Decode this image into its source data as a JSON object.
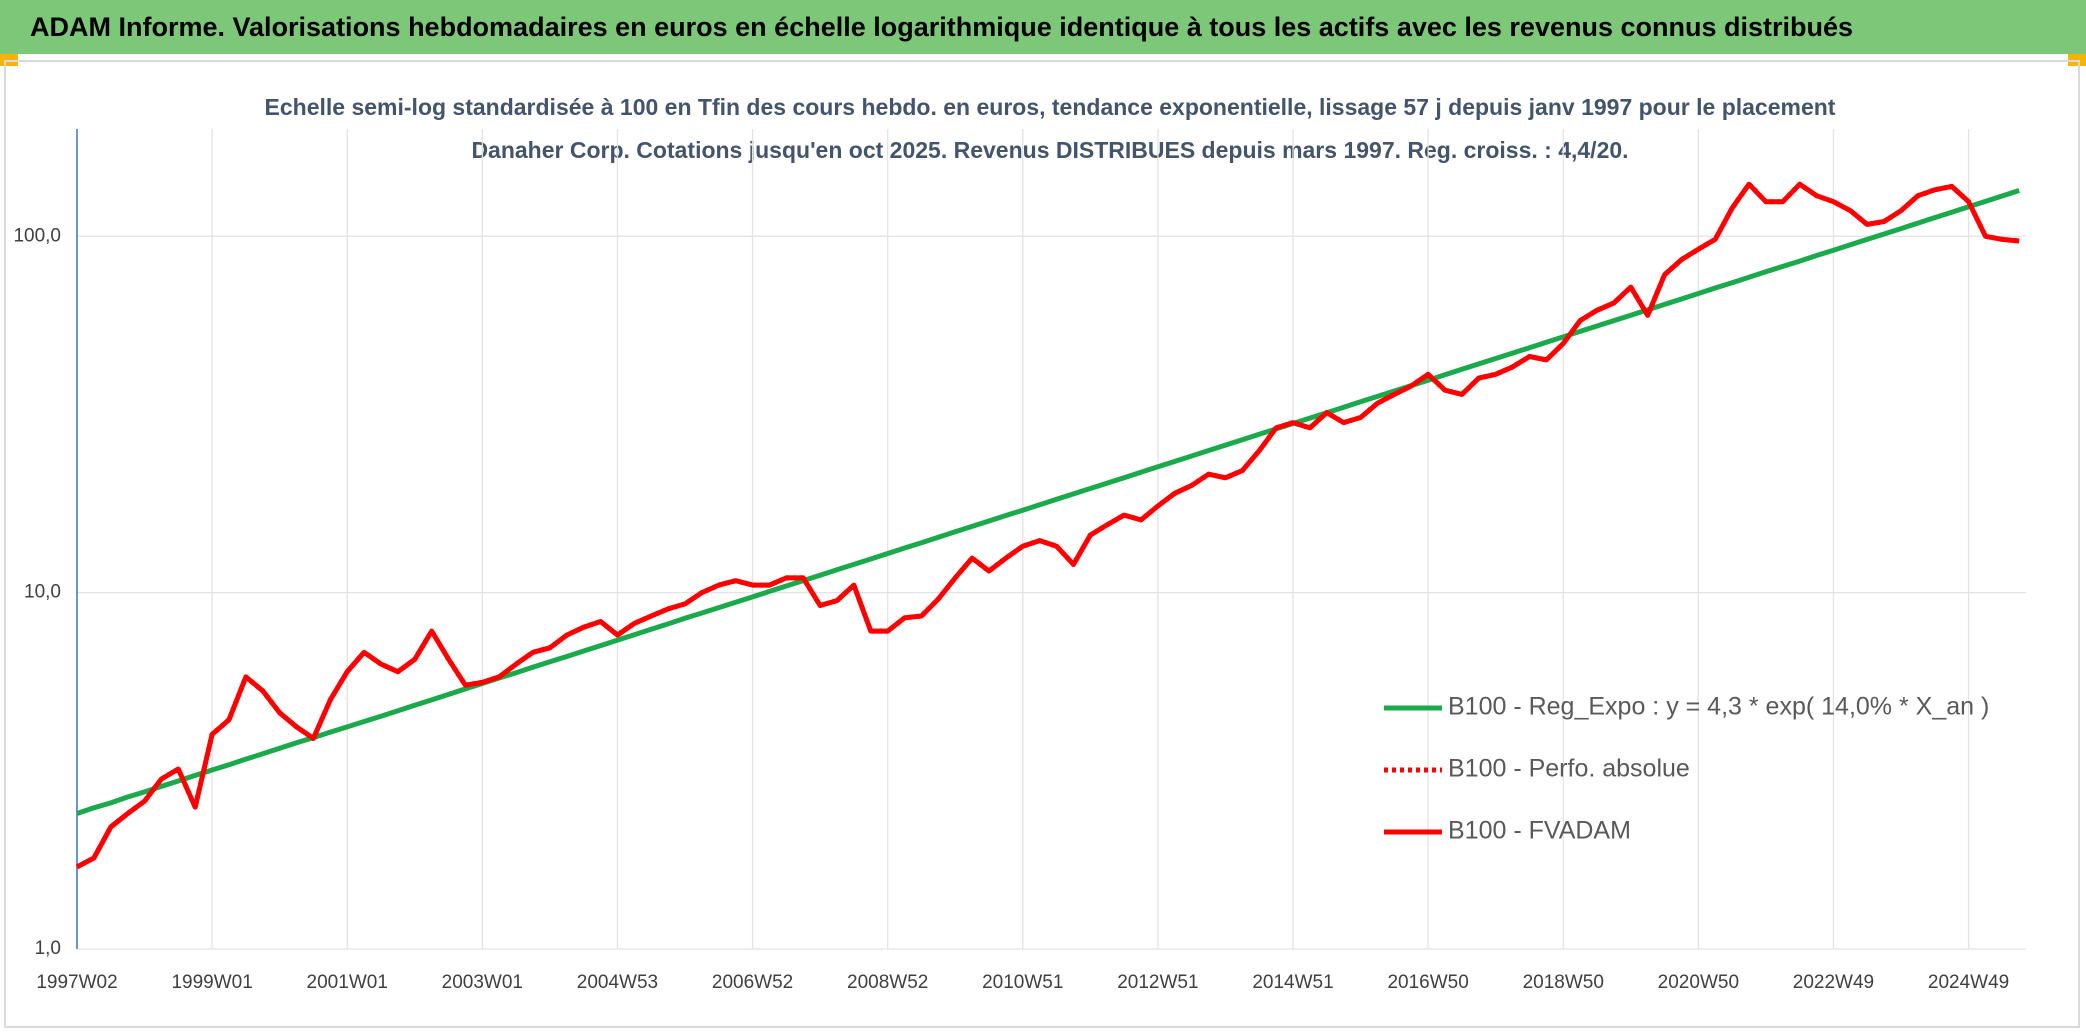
{
  "chart_data": {
    "type": "line",
    "header": "ADAM Informe. Valorisations hebdomadaires en euros en échelle logarithmique identique à tous les actifs avec les revenus connus distribués",
    "title": "Echelle semi-log standardisée à 100 en Tfin des cours hebdo. en euros, tendance exponentielle, lissage 57 j depuis janv 1997 pour le placement Danaher Corp. Cotations jusqu'en oct 2025. Revenus DISTRIBUES depuis mars 1997. Reg. croiss. : 4,4/20.",
    "log_scale": true,
    "grid": true,
    "legend": "right",
    "ylim": [
      1,
      200
    ],
    "yticks": [
      {
        "value": 1,
        "label": "1,0"
      },
      {
        "value": 10,
        "label": "10,0"
      },
      {
        "value": 100,
        "label": "100,0"
      }
    ],
    "categories": [
      "1997W02",
      null,
      null,
      null,
      null,
      null,
      null,
      null,
      "1999W01",
      null,
      null,
      null,
      null,
      null,
      null,
      null,
      "2001W01",
      null,
      null,
      null,
      null,
      null,
      null,
      null,
      "2003W01",
      null,
      null,
      null,
      null,
      null,
      null,
      null,
      "2004W53",
      null,
      null,
      null,
      null,
      null,
      null,
      null,
      "2006W52",
      null,
      null,
      null,
      null,
      null,
      null,
      null,
      "2008W52",
      null,
      null,
      null,
      null,
      null,
      null,
      null,
      "2010W51",
      null,
      null,
      null,
      null,
      null,
      null,
      null,
      "2012W51",
      null,
      null,
      null,
      null,
      null,
      null,
      null,
      "2014W51",
      null,
      null,
      null,
      null,
      null,
      null,
      null,
      "2016W50",
      null,
      null,
      null,
      null,
      null,
      null,
      null,
      "2018W50",
      null,
      null,
      null,
      null,
      null,
      null,
      null,
      "2020W50",
      null,
      null,
      null,
      null,
      null,
      null,
      null,
      "2022W49",
      null,
      null,
      null,
      null,
      null,
      null,
      null,
      "2024W49",
      null,
      null,
      null
    ],
    "series": [
      {
        "name": "B100 - Reg_Expo : y = 4,3 * exp( 14,0% *  X_an )",
        "color": "#1aaa4b",
        "style": "solid",
        "values": [
          2.4,
          2.49,
          2.57,
          2.67,
          2.76,
          2.86,
          2.96,
          3.07,
          3.18,
          3.29,
          3.41,
          3.53,
          3.66,
          3.79,
          3.92,
          4.06,
          4.2,
          4.35,
          4.5,
          4.66,
          4.83,
          5.0,
          5.18,
          5.37,
          5.56,
          5.76,
          5.96,
          6.18,
          6.4,
          6.62,
          6.86,
          7.1,
          7.36,
          7.62,
          7.89,
          8.17,
          8.47,
          8.77,
          9.08,
          9.4,
          9.73,
          10.08,
          10.44,
          10.81,
          11.19,
          11.59,
          12.0,
          12.43,
          12.88,
          13.34,
          13.81,
          14.31,
          14.82,
          15.34,
          15.89,
          16.46,
          17.04,
          17.65,
          18.28,
          18.93,
          19.6,
          20.3,
          21.02,
          21.77,
          22.55,
          23.35,
          24.18,
          25.05,
          25.94,
          26.86,
          27.82,
          28.81,
          29.83,
          30.89,
          31.99,
          33.13,
          34.31,
          35.53,
          36.8,
          38.11,
          39.47,
          40.87,
          42.33,
          43.84,
          45.4,
          47.02,
          48.69,
          50.43,
          52.2,
          54.1,
          56.0,
          58.0,
          60.0,
          62.2,
          64.4,
          66.7,
          69.1,
          71.6,
          74.1,
          76.7,
          79.5,
          82.3,
          85.2,
          88.3,
          91.4,
          94.7,
          98.0,
          101.5,
          105.1,
          108.9,
          112.8,
          116.8,
          121.0,
          125.3,
          129.8,
          134.4
        ]
      },
      {
        "name": "B100 - Perfo. absolue",
        "color": "#ff0000",
        "style": "dotted",
        "values": [
          1.7,
          1.8,
          2.2,
          2.4,
          2.6,
          3.0,
          3.2,
          2.5,
          4.0,
          4.4,
          5.8,
          5.3,
          4.6,
          4.2,
          3.9,
          5.0,
          6.0,
          6.8,
          6.3,
          6.0,
          6.5,
          7.8,
          6.5,
          5.5,
          5.6,
          5.8,
          6.3,
          6.8,
          7.0,
          7.6,
          8.0,
          8.3,
          7.6,
          8.2,
          8.6,
          9.0,
          9.3,
          10.0,
          10.5,
          10.8,
          10.5,
          10.5,
          11.0,
          11.0,
          9.2,
          9.5,
          10.5,
          7.8,
          7.8,
          8.5,
          8.6,
          9.6,
          11.0,
          12.5,
          11.5,
          12.5,
          13.5,
          14.0,
          13.5,
          12.0,
          14.5,
          15.5,
          16.5,
          16.0,
          17.5,
          19.0,
          20.0,
          21.5,
          21.0,
          22.0,
          25.0,
          29.0,
          30.0,
          29.0,
          32.0,
          30.0,
          31.0,
          34.0,
          36.0,
          38.0,
          41.0,
          37.0,
          36.0,
          40.0,
          41.0,
          43.0,
          46.0,
          45.0,
          50.0,
          58.0,
          62.0,
          65.0,
          72.0,
          60.0,
          78.0,
          86.0,
          92.0,
          98.0,
          120.0,
          140.0,
          125.0,
          125.0,
          140.0,
          130.0,
          125.0,
          118.0,
          108.0,
          110.0,
          118.0,
          130.0,
          135.0,
          138.0,
          125.0,
          100.0,
          98.0,
          97.0
        ]
      },
      {
        "name": "B100 - FVADAM",
        "color": "#ff0000",
        "style": "solid",
        "values": [
          1.7,
          1.8,
          2.2,
          2.4,
          2.6,
          3.0,
          3.2,
          2.5,
          4.0,
          4.4,
          5.8,
          5.3,
          4.6,
          4.2,
          3.9,
          5.0,
          6.0,
          6.8,
          6.3,
          6.0,
          6.5,
          7.8,
          6.5,
          5.5,
          5.6,
          5.8,
          6.3,
          6.8,
          7.0,
          7.6,
          8.0,
          8.3,
          7.6,
          8.2,
          8.6,
          9.0,
          9.3,
          10.0,
          10.5,
          10.8,
          10.5,
          10.5,
          11.0,
          11.0,
          9.2,
          9.5,
          10.5,
          7.8,
          7.8,
          8.5,
          8.6,
          9.6,
          11.0,
          12.5,
          11.5,
          12.5,
          13.5,
          14.0,
          13.5,
          12.0,
          14.5,
          15.5,
          16.5,
          16.0,
          17.5,
          19.0,
          20.0,
          21.5,
          21.0,
          22.0,
          25.0,
          29.0,
          30.0,
          29.0,
          32.0,
          30.0,
          31.0,
          34.0,
          36.0,
          38.0,
          41.0,
          37.0,
          36.0,
          40.0,
          41.0,
          43.0,
          46.0,
          45.0,
          50.0,
          58.0,
          62.0,
          65.0,
          72.0,
          60.0,
          78.0,
          86.0,
          92.0,
          98.0,
          120.0,
          140.0,
          125.0,
          125.0,
          140.0,
          130.0,
          125.0,
          118.0,
          108.0,
          110.0,
          118.0,
          130.0,
          135.0,
          138.0,
          125.0,
          100.0,
          98.0,
          97.0
        ]
      }
    ]
  }
}
